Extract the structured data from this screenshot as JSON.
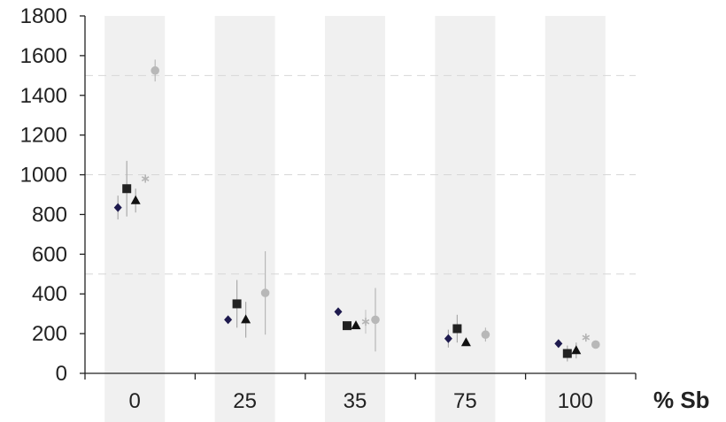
{
  "chart_data": {
    "type": "scatter",
    "title": "",
    "xlabel": "% Sb",
    "ylabel": "",
    "categories": [
      "0",
      "25",
      "35",
      "75",
      "100"
    ],
    "ylim": [
      0,
      1800
    ],
    "yticks": [
      0,
      200,
      400,
      600,
      800,
      1000,
      1200,
      1400,
      1600,
      1800
    ],
    "grid": "dashed horizontal lines at 500, 1000 and 1500",
    "band_color": "#f0f0f0",
    "legend": "none",
    "series": [
      {
        "marker": "diamond",
        "color": "#1e1a4e",
        "error_color": "#aaaaaa",
        "values": [
          835,
          270,
          310,
          175,
          150
        ],
        "errors": [
          60,
          0,
          0,
          45,
          20
        ]
      },
      {
        "marker": "square",
        "color": "#222222",
        "error_color": "#aaaaaa",
        "values": [
          930,
          350,
          240,
          225,
          100
        ],
        "errors": [
          140,
          120,
          0,
          70,
          40
        ]
      },
      {
        "marker": "triangle",
        "color": "#111111",
        "error_color": "#aaaaaa",
        "values": [
          870,
          270,
          240,
          155,
          115
        ],
        "errors": [
          60,
          90,
          0,
          0,
          40
        ]
      },
      {
        "marker": "asterisk",
        "color": "#b5b5b5",
        "error_color": "#c8c8c8",
        "values": [
          980,
          null,
          260,
          null,
          180
        ],
        "errors": [
          0,
          0,
          60,
          0,
          20
        ]
      },
      {
        "marker": "circle",
        "color": "#b8b8b8",
        "error_color": "#b8b8b8",
        "values": [
          1525,
          405,
          270,
          195,
          145
        ],
        "errors": [
          55,
          210,
          160,
          35,
          0
        ]
      }
    ]
  }
}
